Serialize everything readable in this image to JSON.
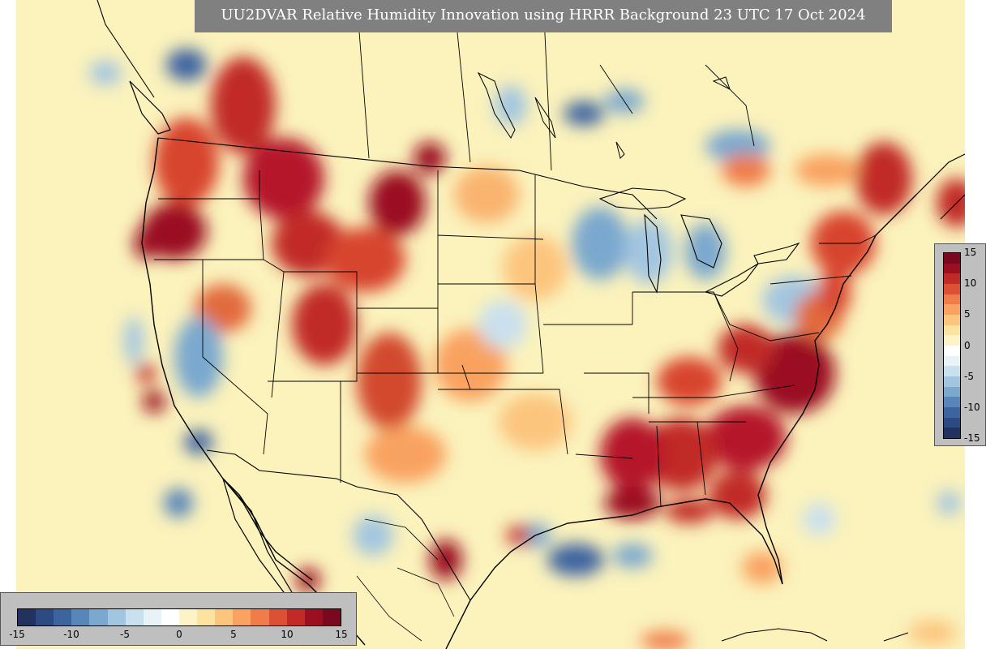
{
  "title": "UU2DVAR Relative Humidity Innovation using HRRR Background 23 UTC 17 Oct 2024",
  "colorbar": {
    "ticks_right": [
      "15",
      "10",
      "5",
      "0",
      "-5",
      "-10",
      "-15"
    ],
    "ticks_bottom": [
      "-15",
      "-10",
      "-5",
      "0",
      "5",
      "10",
      "15"
    ],
    "range": [
      -15,
      15
    ],
    "colors": [
      "#23315f",
      "#2e4a82",
      "#3e64a0",
      "#5886ba",
      "#7aa8cf",
      "#a3c6e0",
      "#c9e0ee",
      "#e8f3f7",
      "#ffffff",
      "#fdf3c7",
      "#fde3a0",
      "#fcc57e",
      "#f9a261",
      "#f07c4a",
      "#dc5136",
      "#c12a26",
      "#9b0f21",
      "#7a0920"
    ],
    "palette": "diverging blue-white-red"
  },
  "colors": {
    "background": "#fbf2bc",
    "panel": "#bfbfbf",
    "banner": "#808080",
    "outline": "#000000"
  }
}
